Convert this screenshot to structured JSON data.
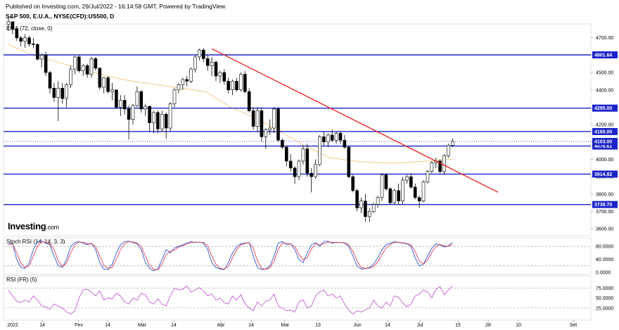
{
  "header": {
    "published": "Published on Investing.com, 29/Jul/2022 - 16:14:58 GMT, Powered by TradingView",
    "symbol": "S&P 500, E.U.A., NYSE(CFD):US500, D"
  },
  "brand": {
    "name": "Investing",
    "suffix": ".com"
  },
  "chart_data": [
    {
      "type": "candlestick",
      "title": "S&P 500, E.U.A., NYSE(CFD):US500, D",
      "overlay_label": "EMA (72, close, 0)",
      "ylim": [
        3560,
        4780
      ],
      "y_ticks": [
        "3600.00",
        "3700.00",
        "3800.00",
        "3900.00",
        "4000.00",
        "4100.00",
        "4200.00",
        "4300.00",
        "4400.00",
        "4500.00",
        "4600.00",
        "4700.00"
      ],
      "x_ticks": [
        "2022",
        "14",
        "Fev",
        "14",
        "Mar",
        "14",
        "Abr",
        "14",
        "Mai",
        "13",
        "Jun",
        "14",
        "Jul",
        "15",
        "28",
        "10",
        "Set"
      ],
      "horizontal_levels": [
        {
          "label": "4601.64",
          "value": 4601.64
        },
        {
          "label": "4295.00",
          "value": 4295.0
        },
        {
          "label": "4160.00",
          "value": 4160.0
        },
        {
          "label": "4076.61",
          "value": 4076.61
        },
        {
          "label": "3914.82",
          "value": 3914.82
        },
        {
          "label": "3739.70",
          "value": 3739.7
        }
      ],
      "last_price": {
        "label": "4103.00",
        "value": 4103.0
      },
      "trendline": {
        "from": {
          "date": "Mar 29",
          "value": 4637
        },
        "to": {
          "date": "Jul 29",
          "value": 3810
        }
      },
      "colors": {
        "levels": "#1a23c9",
        "trendline": "#e8201d",
        "ema": "#f3c886",
        "up": "#ffffff",
        "down": "#000000"
      },
      "candles": [
        [
          4778,
          4818,
          4740,
          4793
        ],
        [
          4793,
          4793,
          4720,
          4750
        ],
        [
          4750,
          4758,
          4683,
          4700
        ],
        [
          4700,
          4711,
          4650,
          4680
        ],
        [
          4680,
          4720,
          4642,
          4700
        ],
        [
          4700,
          4710,
          4650,
          4665
        ],
        [
          4665,
          4700,
          4640,
          4662
        ],
        [
          4662,
          4668,
          4570,
          4577
        ],
        [
          4577,
          4610,
          4530,
          4600
        ],
        [
          4600,
          4620,
          4480,
          4500
        ],
        [
          4500,
          4510,
          4380,
          4410
        ],
        [
          4410,
          4440,
          4330,
          4356
        ],
        [
          4356,
          4450,
          4221,
          4410
        ],
        [
          4410,
          4440,
          4320,
          4350
        ],
        [
          4350,
          4440,
          4300,
          4430
        ],
        [
          4430,
          4540,
          4410,
          4520
        ],
        [
          4520,
          4595,
          4490,
          4590
        ],
        [
          4590,
          4600,
          4500,
          4510
        ],
        [
          4510,
          4550,
          4480,
          4540
        ],
        [
          4540,
          4550,
          4470,
          4490
        ],
        [
          4490,
          4590,
          4470,
          4580
        ],
        [
          4580,
          4590,
          4510,
          4525
        ],
        [
          4525,
          4530,
          4400,
          4415
        ],
        [
          4415,
          4475,
          4380,
          4470
        ],
        [
          4470,
          4480,
          4380,
          4390
        ],
        [
          4390,
          4440,
          4340,
          4400
        ],
        [
          4400,
          4400,
          4290,
          4300
        ],
        [
          4300,
          4370,
          4250,
          4340
        ],
        [
          4340,
          4370,
          4260,
          4290
        ],
        [
          4290,
          4310,
          4115,
          4230
        ],
        [
          4230,
          4320,
          4200,
          4310
        ],
        [
          4310,
          4420,
          4300,
          4390
        ],
        [
          4390,
          4400,
          4270,
          4290
        ],
        [
          4290,
          4320,
          4250,
          4305
        ],
        [
          4305,
          4310,
          4160,
          4210
        ],
        [
          4210,
          4280,
          4150,
          4270
        ],
        [
          4270,
          4280,
          4150,
          4175
        ],
        [
          4175,
          4280,
          4160,
          4260
        ],
        [
          4260,
          4270,
          4120,
          4180
        ],
        [
          4180,
          4330,
          4160,
          4320
        ],
        [
          4320,
          4410,
          4300,
          4400
        ],
        [
          4400,
          4440,
          4380,
          4430
        ],
        [
          4430,
          4470,
          4400,
          4460
        ],
        [
          4460,
          4480,
          4420,
          4450
        ],
        [
          4450,
          4530,
          4440,
          4520
        ],
        [
          4520,
          4600,
          4500,
          4590
        ],
        [
          4590,
          4637,
          4570,
          4630
        ],
        [
          4630,
          4640,
          4560,
          4580
        ],
        [
          4580,
          4600,
          4510,
          4540
        ],
        [
          4540,
          4590,
          4480,
          4560
        ],
        [
          4560,
          4570,
          4450,
          4480
        ],
        [
          4480,
          4510,
          4440,
          4500
        ],
        [
          4500,
          4520,
          4430,
          4450
        ],
        [
          4450,
          4470,
          4380,
          4400
        ],
        [
          4400,
          4460,
          4370,
          4450
        ],
        [
          4450,
          4470,
          4390,
          4400
        ],
        [
          4400,
          4500,
          4390,
          4490
        ],
        [
          4490,
          4510,
          4380,
          4390
        ],
        [
          4390,
          4410,
          4270,
          4280
        ],
        [
          4280,
          4300,
          4170,
          4190
        ],
        [
          4190,
          4300,
          4160,
          4280
        ],
        [
          4280,
          4300,
          4100,
          4130
        ],
        [
          4130,
          4180,
          4060,
          4170
        ],
        [
          4170,
          4230,
          4140,
          4180
        ],
        [
          4180,
          4300,
          4150,
          4290
        ],
        [
          4290,
          4300,
          4100,
          4110
        ],
        [
          4110,
          4120,
          4060,
          4070
        ],
        [
          4070,
          4080,
          3960,
          3990
        ],
        [
          3990,
          4030,
          3930,
          3950
        ],
        [
          3950,
          3960,
          3860,
          3900
        ],
        [
          3900,
          4000,
          3880,
          3990
        ],
        [
          3990,
          4080,
          3970,
          4060
        ],
        [
          4060,
          4090,
          3900,
          3920
        ],
        [
          3920,
          3950,
          3810,
          3900
        ],
        [
          3900,
          4000,
          3890,
          3970
        ],
        [
          3970,
          4140,
          3960,
          4130
        ],
        [
          4130,
          4160,
          4080,
          4100
        ],
        [
          4100,
          4150,
          4070,
          4140
        ],
        [
          4140,
          4170,
          4100,
          4110
        ],
        [
          4110,
          4160,
          4090,
          4150
        ],
        [
          4150,
          4160,
          4090,
          4110
        ],
        [
          4110,
          4140,
          4060,
          4070
        ],
        [
          4070,
          4080,
          3890,
          3900
        ],
        [
          3900,
          3910,
          3810,
          3820
        ],
        [
          3820,
          3830,
          3700,
          3720
        ],
        [
          3720,
          3780,
          3690,
          3760
        ],
        [
          3760,
          3800,
          3640,
          3670
        ],
        [
          3670,
          3720,
          3640,
          3700
        ],
        [
          3700,
          3750,
          3690,
          3740
        ],
        [
          3740,
          3790,
          3720,
          3780
        ],
        [
          3780,
          3920,
          3760,
          3910
        ],
        [
          3910,
          3920,
          3820,
          3830
        ],
        [
          3830,
          3840,
          3740,
          3750
        ],
        [
          3750,
          3830,
          3740,
          3820
        ],
        [
          3820,
          3860,
          3740,
          3760
        ],
        [
          3760,
          3900,
          3740,
          3880
        ],
        [
          3880,
          3910,
          3860,
          3900
        ],
        [
          3900,
          3920,
          3830,
          3840
        ],
        [
          3840,
          3860,
          3770,
          3780
        ],
        [
          3780,
          3790,
          3720,
          3760
        ],
        [
          3760,
          3880,
          3750,
          3870
        ],
        [
          3870,
          3940,
          3860,
          3930
        ],
        [
          3930,
          3990,
          3920,
          3980
        ],
        [
          3980,
          4010,
          3950,
          3990
        ],
        [
          3990,
          4000,
          3920,
          3930
        ],
        [
          3930,
          4030,
          3910,
          4020
        ],
        [
          4020,
          4090,
          4010,
          4080
        ],
        [
          4080,
          4120,
          4070,
          4103
        ]
      ],
      "ema": [
        4660,
        4600,
        4560,
        4520,
        4480,
        4450,
        4430,
        4410,
        4390,
        4300,
        4240,
        4160,
        4080,
        4010,
        3990,
        3980,
        3980,
        3990,
        4000
      ]
    },
    {
      "type": "line",
      "title": "Stoch RSI (14, 14, 3, 3)",
      "ylim": [
        0,
        100
      ],
      "y_ticks": [
        "80.0000",
        "40.0000",
        "0.0000"
      ],
      "guides": [
        80,
        20
      ],
      "series": [
        {
          "name": "K",
          "color": "#2b58d6",
          "values": [
            90,
            88,
            40,
            15,
            12,
            30,
            70,
            95,
            97,
            90,
            85,
            50,
            20,
            15,
            40,
            80,
            92,
            95,
            90,
            85,
            90,
            70,
            30,
            10,
            8,
            25,
            60,
            85,
            95,
            96,
            92,
            88,
            70,
            30,
            12,
            5,
            10,
            40,
            70,
            60,
            75,
            80,
            85,
            90,
            95,
            92,
            94,
            90,
            70,
            30,
            15,
            10,
            8,
            30,
            60,
            80,
            88,
            90,
            92,
            50,
            15,
            8,
            10,
            20,
            50,
            90,
            95,
            85,
            88,
            70,
            40,
            30,
            60,
            85,
            92,
            80,
            95,
            96,
            90,
            93,
            92,
            90,
            80,
            50,
            20,
            10,
            12,
            15,
            25,
            45,
            70,
            85,
            90,
            95,
            92,
            90,
            88,
            80,
            45,
            20,
            25,
            50,
            75,
            88,
            85,
            78,
            82,
            92
          ]
        },
        {
          "name": "D",
          "color": "#e23c4d",
          "values": [
            85,
            88,
            60,
            28,
            15,
            20,
            50,
            80,
            95,
            93,
            88,
            70,
            35,
            18,
            28,
            60,
            85,
            94,
            93,
            88,
            88,
            80,
            50,
            22,
            12,
            15,
            40,
            70,
            88,
            95,
            94,
            90,
            80,
            50,
            22,
            10,
            8,
            25,
            55,
            65,
            68,
            78,
            82,
            88,
            92,
            93,
            93,
            92,
            82,
            50,
            25,
            12,
            10,
            18,
            45,
            70,
            85,
            89,
            91,
            75,
            35,
            12,
            9,
            14,
            35,
            70,
            90,
            90,
            87,
            80,
            55,
            38,
            45,
            72,
            88,
            86,
            88,
            94,
            93,
            92,
            92,
            91,
            85,
            65,
            35,
            15,
            12,
            13,
            18,
            32,
            55,
            75,
            86,
            92,
            93,
            91,
            89,
            85,
            65,
            35,
            25,
            38,
            62,
            80,
            86,
            82,
            80,
            86
          ]
        }
      ]
    },
    {
      "type": "line",
      "title": "RSI (FR) (5)",
      "ylim": [
        0,
        100
      ],
      "y_ticks": [
        "75.0000",
        "50.0000",
        "25.0000"
      ],
      "guides": [
        75,
        25
      ],
      "series": [
        {
          "name": "RSI",
          "color": "#c25bd1",
          "values": [
            70,
            55,
            42,
            38,
            45,
            40,
            55,
            45,
            30,
            28,
            22,
            35,
            30,
            25,
            15,
            10,
            18,
            50,
            70,
            72,
            65,
            55,
            68,
            45,
            50,
            48,
            62,
            55,
            40,
            35,
            50,
            45,
            62,
            58,
            40,
            35,
            48,
            35,
            30,
            55,
            75,
            70,
            72,
            80,
            65,
            70,
            76,
            68,
            55,
            60,
            45,
            50,
            38,
            35,
            55,
            45,
            58,
            36,
            25,
            18,
            40,
            30,
            42,
            45,
            60,
            30,
            25,
            18,
            20,
            15,
            40,
            45,
            25,
            30,
            55,
            65,
            70,
            55,
            60,
            50,
            55,
            35,
            20,
            10,
            18,
            15,
            20,
            25,
            45,
            30,
            25,
            40,
            30,
            55,
            52,
            38,
            28,
            35,
            55,
            60,
            70,
            65,
            50,
            72,
            78,
            58,
            70,
            80
          ]
        }
      ]
    }
  ]
}
